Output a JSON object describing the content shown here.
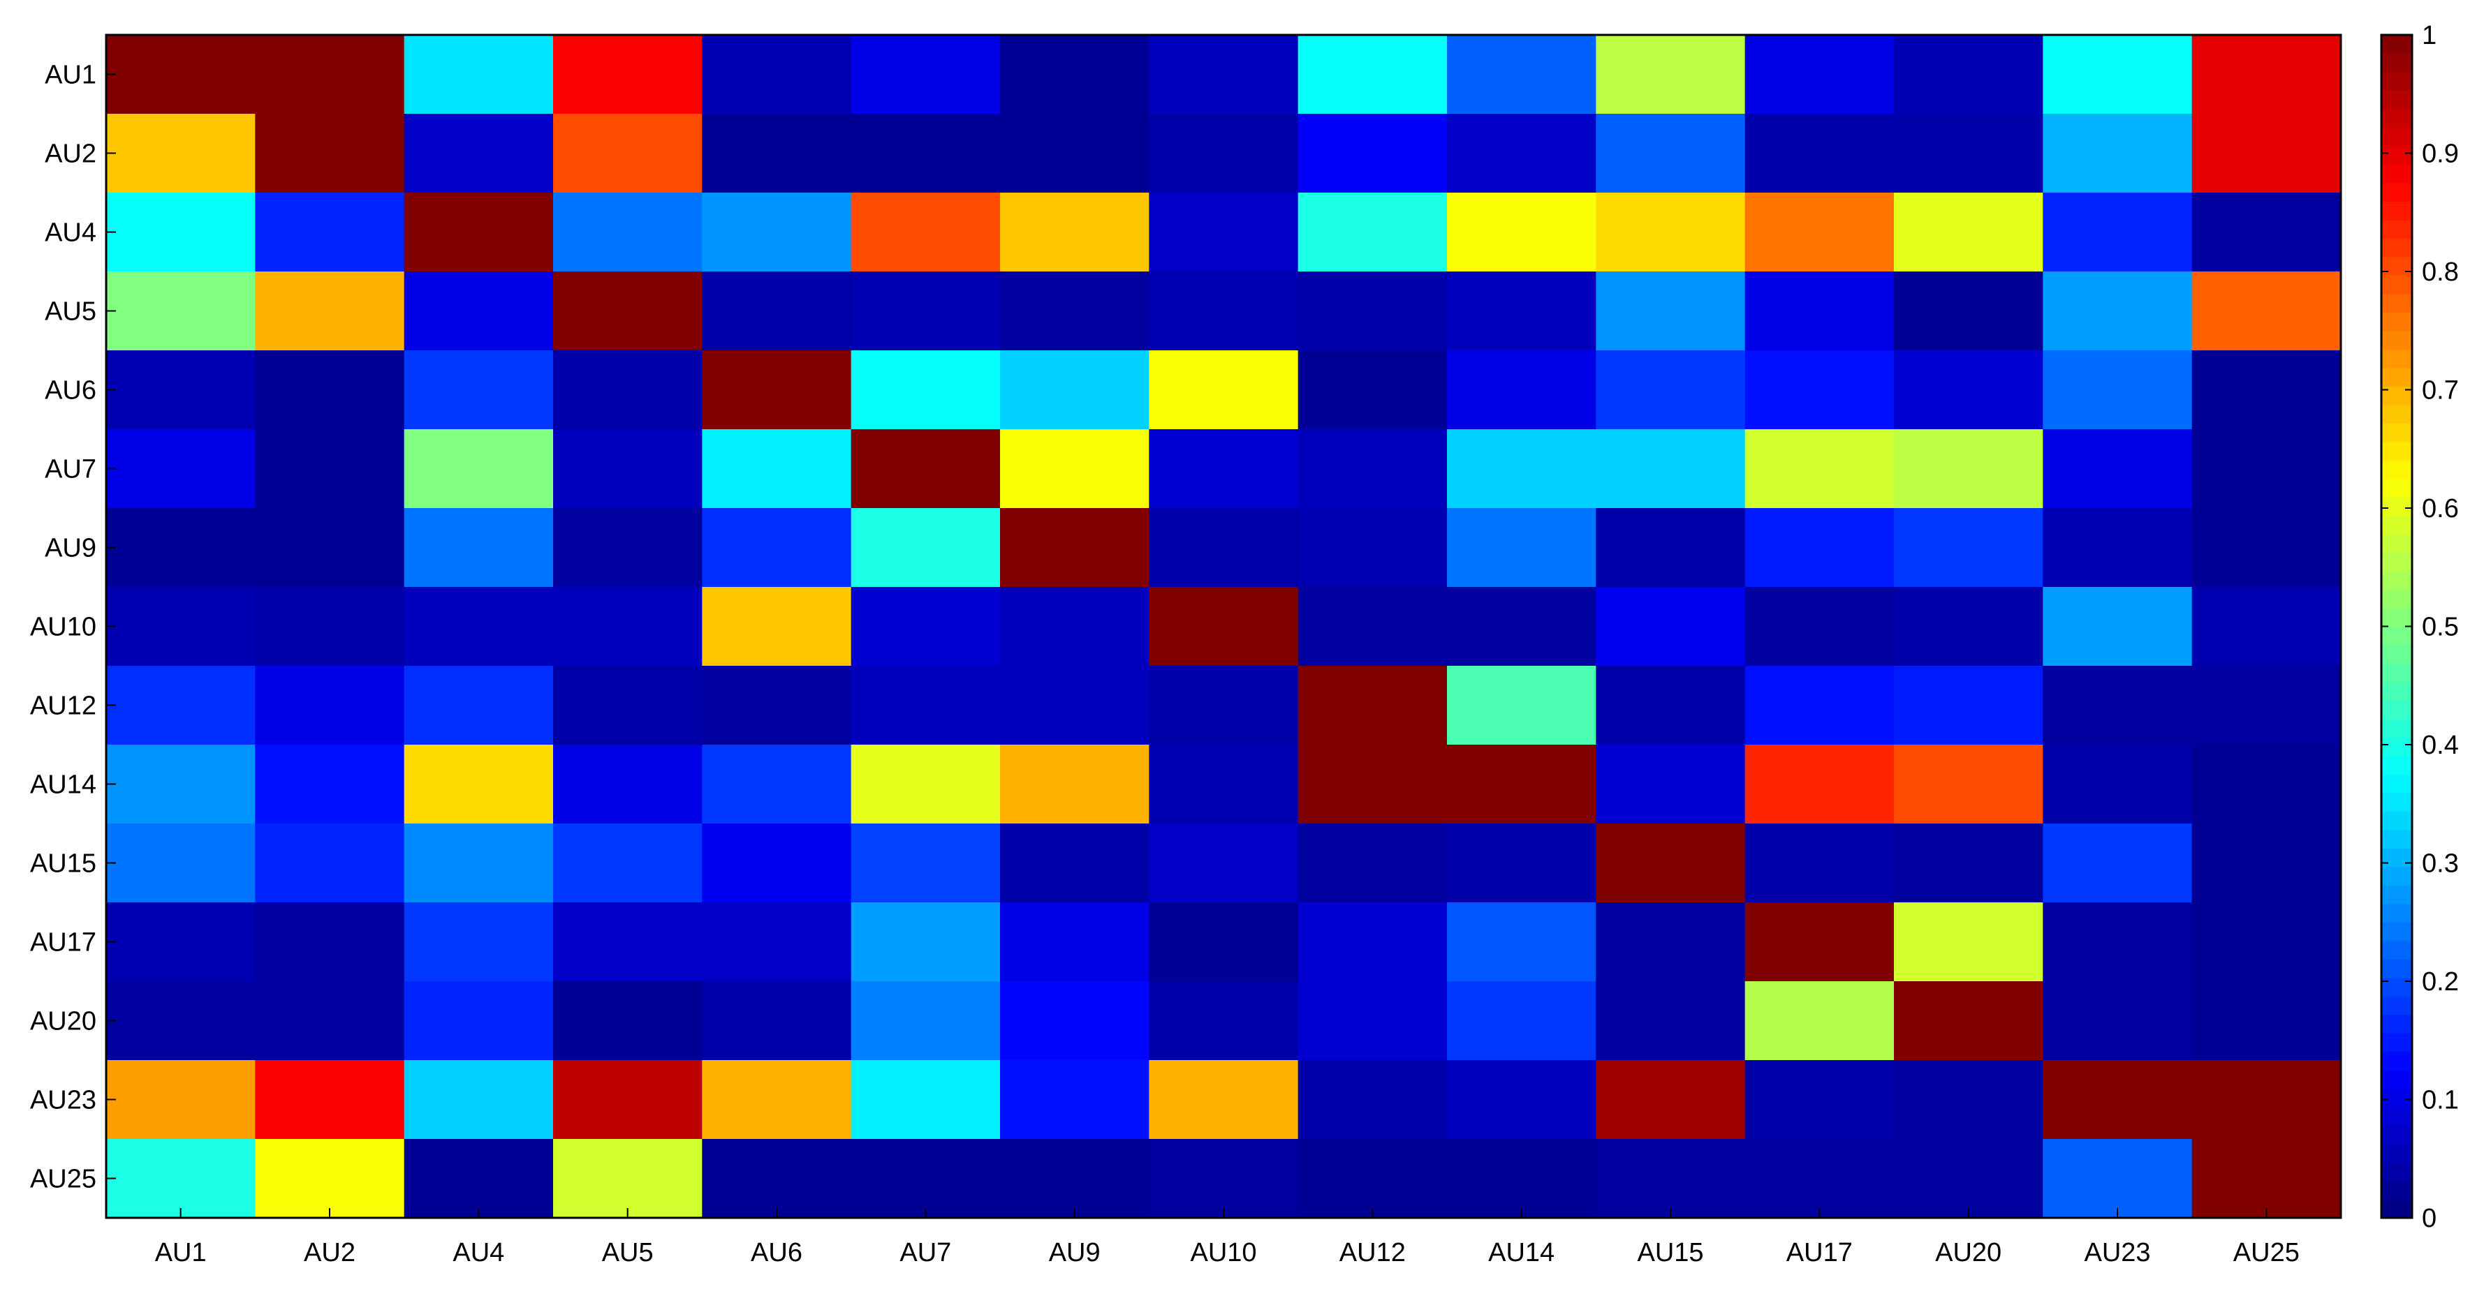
{
  "chart_data": {
    "type": "heatmap",
    "title": "",
    "xlabel": "",
    "ylabel": "",
    "x_categories": [
      "AU1",
      "AU2",
      "AU4",
      "AU5",
      "AU6",
      "AU7",
      "AU9",
      "AU10",
      "AU12",
      "AU14",
      "AU15",
      "AU17",
      "AU20",
      "AU23",
      "AU25"
    ],
    "y_categories": [
      "AU1",
      "AU2",
      "AU4",
      "AU5",
      "AU6",
      "AU7",
      "AU9",
      "AU10",
      "AU12",
      "AU14",
      "AU15",
      "AU17",
      "AU20",
      "AU23",
      "AU25"
    ],
    "values": [
      [
        1.0,
        1.0,
        0.35,
        0.88,
        0.05,
        0.1,
        0.02,
        0.06,
        0.38,
        0.22,
        0.56,
        0.1,
        0.05,
        0.38,
        0.9
      ],
      [
        0.68,
        1.0,
        0.07,
        0.8,
        0.02,
        0.02,
        0.02,
        0.04,
        0.12,
        0.07,
        0.22,
        0.04,
        0.04,
        0.3,
        0.9
      ],
      [
        0.38,
        0.16,
        1.0,
        0.24,
        0.27,
        0.8,
        0.68,
        0.07,
        0.4,
        0.62,
        0.66,
        0.76,
        0.6,
        0.16,
        0.03
      ],
      [
        0.5,
        0.7,
        0.1,
        1.0,
        0.04,
        0.05,
        0.03,
        0.05,
        0.04,
        0.06,
        0.27,
        0.1,
        0.02,
        0.28,
        0.78
      ],
      [
        0.05,
        0.02,
        0.18,
        0.04,
        1.0,
        0.38,
        0.33,
        0.62,
        0.02,
        0.1,
        0.18,
        0.14,
        0.08,
        0.23,
        0.02
      ],
      [
        0.1,
        0.02,
        0.5,
        0.06,
        0.36,
        1.0,
        0.62,
        0.08,
        0.06,
        0.33,
        0.33,
        0.58,
        0.56,
        0.1,
        0.02
      ],
      [
        0.02,
        0.02,
        0.24,
        0.03,
        0.17,
        0.4,
        1.0,
        0.04,
        0.05,
        0.24,
        0.04,
        0.15,
        0.18,
        0.05,
        0.02
      ],
      [
        0.05,
        0.04,
        0.06,
        0.06,
        0.68,
        0.08,
        0.06,
        1.0,
        0.03,
        0.03,
        0.11,
        0.03,
        0.04,
        0.28,
        0.05
      ],
      [
        0.17,
        0.1,
        0.17,
        0.04,
        0.03,
        0.06,
        0.06,
        0.04,
        1.0,
        0.45,
        0.04,
        0.14,
        0.15,
        0.03,
        0.03
      ],
      [
        0.27,
        0.14,
        0.66,
        0.1,
        0.18,
        0.6,
        0.7,
        0.05,
        1.0,
        1.0,
        0.08,
        0.84,
        0.8,
        0.04,
        0.02
      ],
      [
        0.24,
        0.16,
        0.26,
        0.18,
        0.11,
        0.19,
        0.04,
        0.07,
        0.03,
        0.04,
        1.0,
        0.04,
        0.03,
        0.18,
        0.02
      ],
      [
        0.05,
        0.03,
        0.18,
        0.07,
        0.07,
        0.28,
        0.1,
        0.02,
        0.08,
        0.21,
        0.03,
        1.0,
        0.58,
        0.03,
        0.02
      ],
      [
        0.03,
        0.03,
        0.16,
        0.02,
        0.04,
        0.25,
        0.13,
        0.04,
        0.08,
        0.18,
        0.03,
        0.55,
        1.0,
        0.03,
        0.02
      ],
      [
        0.72,
        0.88,
        0.33,
        0.94,
        0.7,
        0.36,
        0.14,
        0.7,
        0.04,
        0.06,
        0.97,
        0.04,
        0.03,
        1.0,
        1.0
      ],
      [
        0.4,
        0.62,
        0.02,
        0.58,
        0.02,
        0.02,
        0.02,
        0.03,
        0.02,
        0.02,
        0.03,
        0.03,
        0.03,
        0.22,
        1.0
      ]
    ],
    "colormap": "jet",
    "clim": [
      0,
      1
    ],
    "colorbar": {
      "position": "right",
      "ticks": [
        "0",
        "0.1",
        "0.2",
        "0.3",
        "0.4",
        "0.5",
        "0.6",
        "0.7",
        "0.8",
        "0.9",
        "1"
      ]
    },
    "grid": false
  }
}
